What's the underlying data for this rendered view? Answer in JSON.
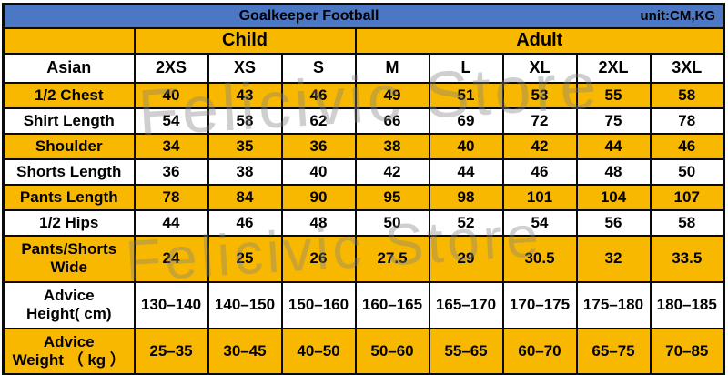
{
  "colors": {
    "header_blue": "#4b77c5",
    "row_yellow": "#f9b800",
    "row_white": "#ffffff",
    "border_black": "#0a0a0a",
    "text_black": "#000000"
  },
  "watermark": {
    "text": "Felicivic Store"
  },
  "chart_data": {
    "type": "table",
    "title": "Goalkeeper Football",
    "unit_label": "unit:CM,KG",
    "column_groups": [
      {
        "label": "Child",
        "span": 3
      },
      {
        "label": "Adult",
        "span": 5
      }
    ],
    "size_system_label": "Asian",
    "size_columns": [
      "2XS",
      "XS",
      "S",
      "M",
      "L",
      "XL",
      "2XL",
      "3XL"
    ],
    "rows": [
      {
        "label": "1/2 Chest",
        "values": [
          40,
          43,
          46,
          49,
          51,
          53,
          55,
          58
        ]
      },
      {
        "label": "Shirt Length",
        "values": [
          54,
          58,
          62,
          66,
          69,
          72,
          75,
          78
        ]
      },
      {
        "label": "Shoulder",
        "values": [
          34,
          35,
          36,
          38,
          40,
          42,
          44,
          46
        ]
      },
      {
        "label": "Shorts Length",
        "values": [
          36,
          38,
          40,
          42,
          44,
          46,
          48,
          50
        ]
      },
      {
        "label": "Pants Length",
        "values": [
          78,
          84,
          90,
          95,
          98,
          101,
          104,
          107
        ]
      },
      {
        "label": "1/2 Hips",
        "values": [
          44,
          46,
          48,
          50,
          52,
          54,
          56,
          58
        ]
      },
      {
        "label": "Pants/Shorts\nWide",
        "values": [
          24,
          25,
          26,
          27.5,
          29,
          30.5,
          32,
          33.5
        ]
      },
      {
        "label": "Advice\nHeight( cm)",
        "values": [
          "130–140",
          "140–150",
          "150–160",
          "160–165",
          "165–170",
          "170–175",
          "175–180",
          "180–185"
        ]
      },
      {
        "label": "Advice\nWeight （ kg ）",
        "values": [
          "25–35",
          "30–45",
          "40–50",
          "50–60",
          "55–65",
          "60–70",
          "65–75",
          "70–85"
        ]
      }
    ]
  }
}
